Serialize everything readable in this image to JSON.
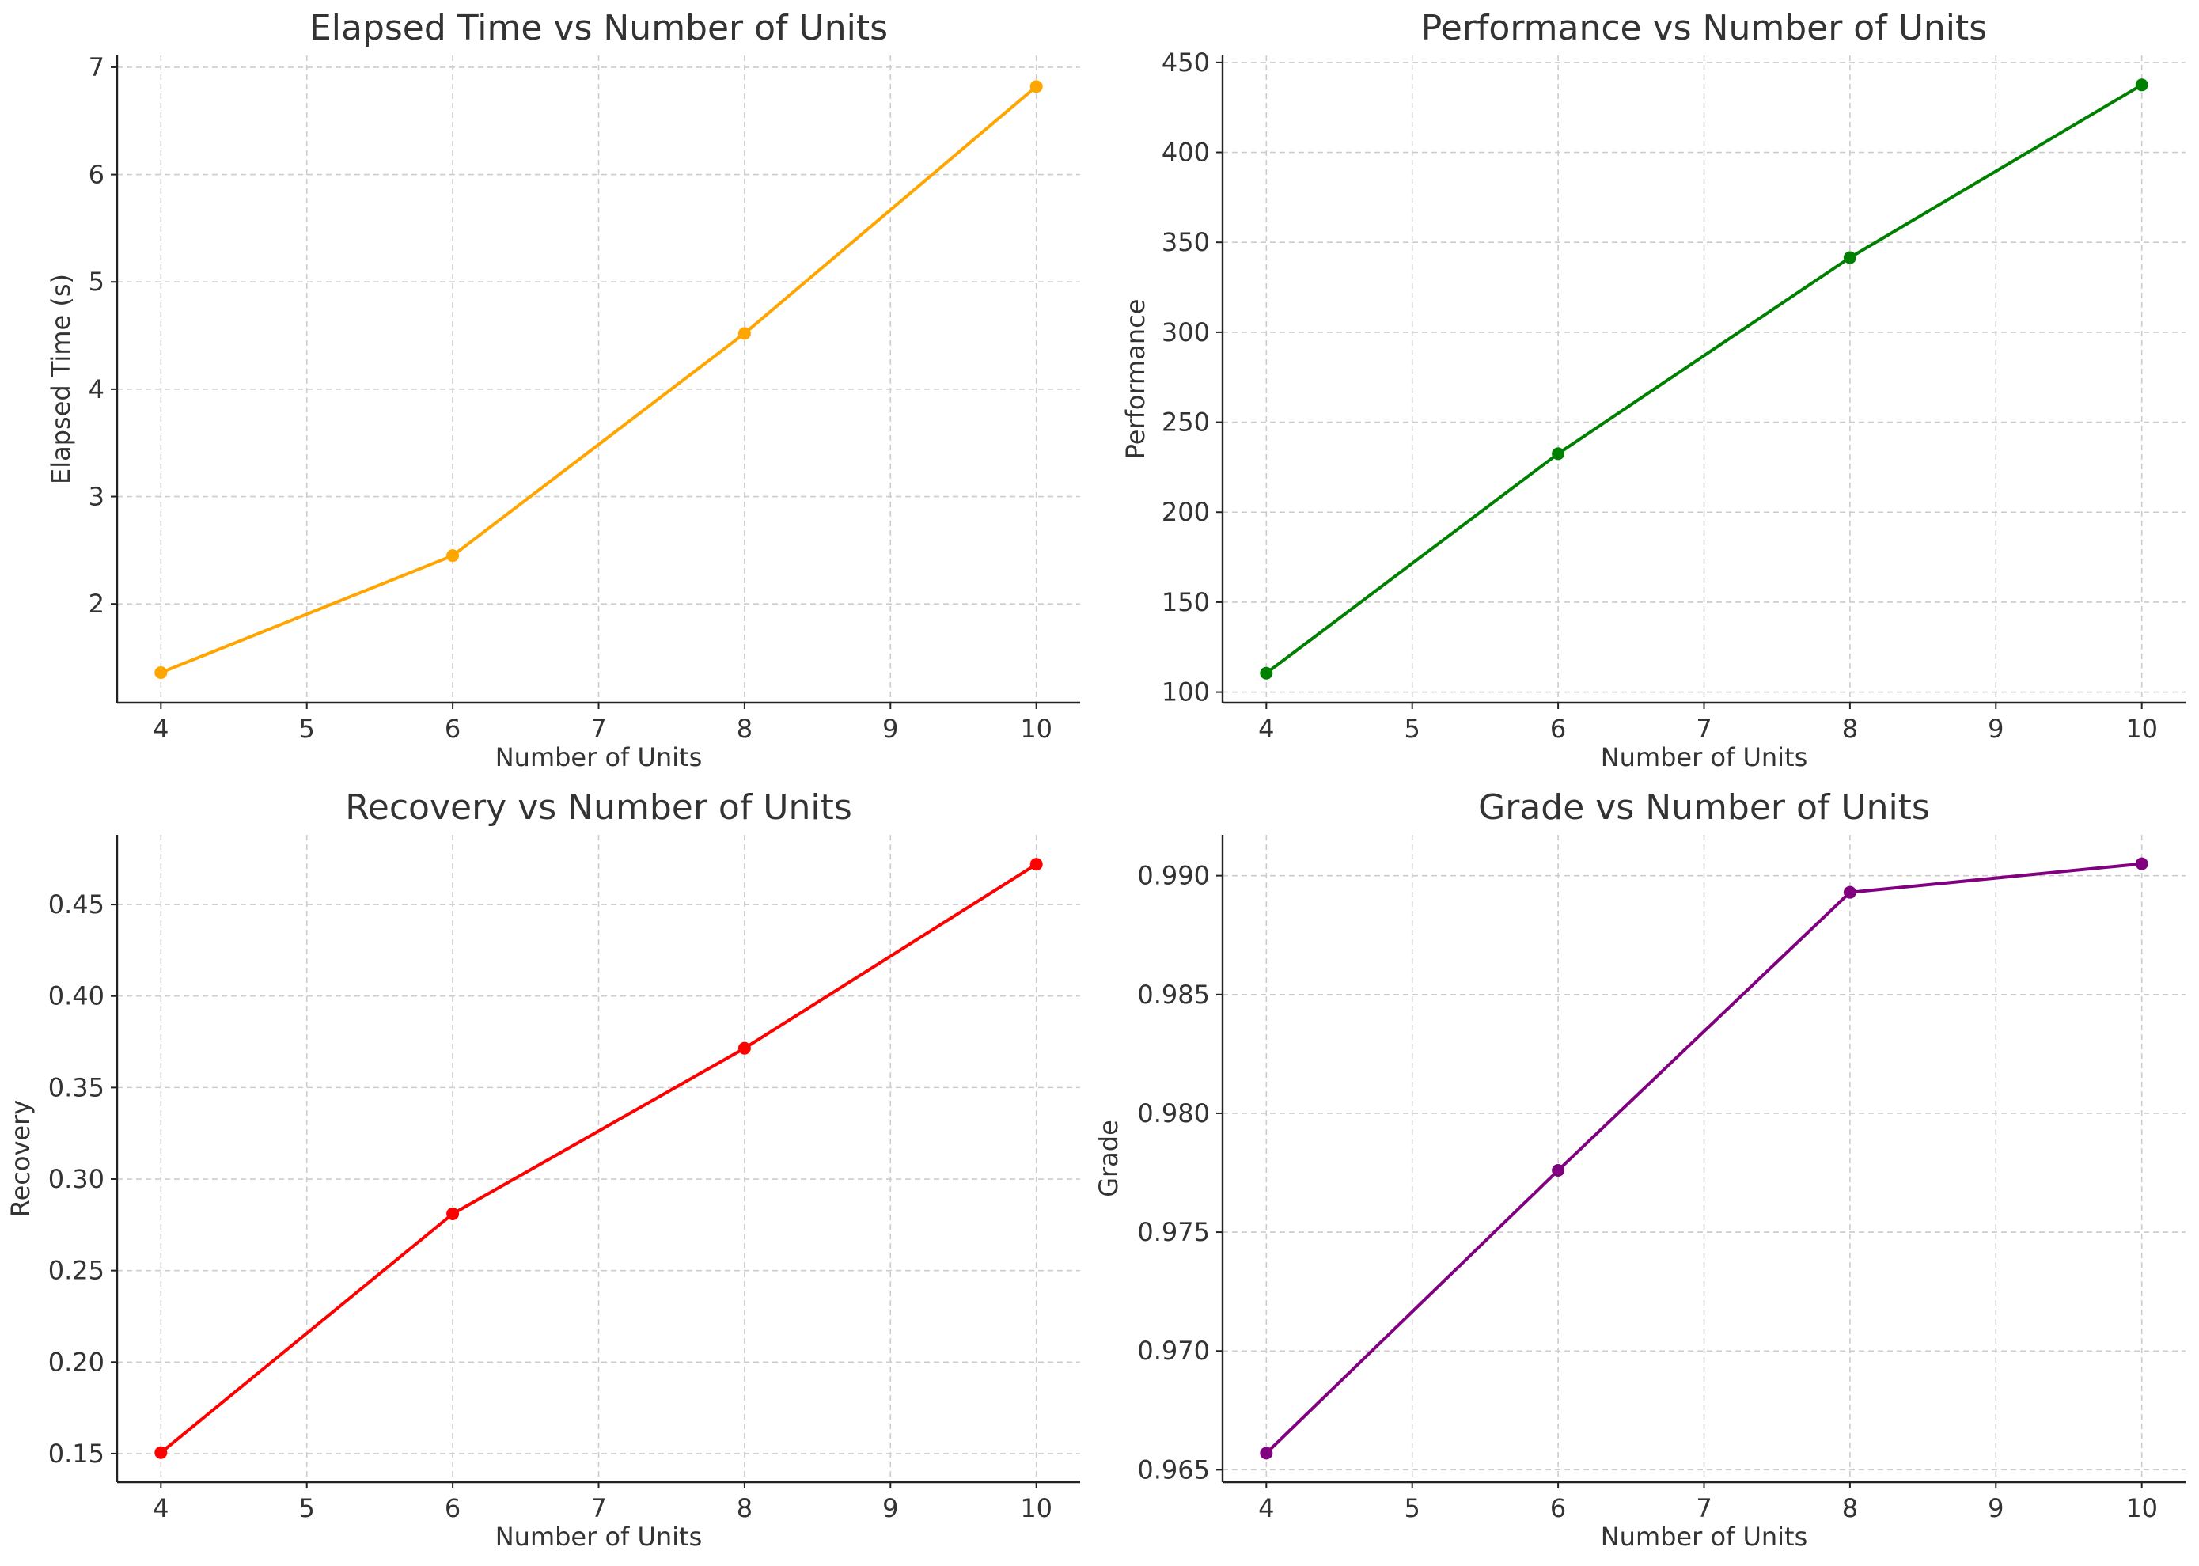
{
  "chart_data": [
    {
      "type": "line",
      "title": "Elapsed Time vs Number of Units",
      "xlabel": "Number of Units",
      "ylabel": "Elapsed Time (s)",
      "x": [
        4,
        6,
        8,
        10
      ],
      "series": [
        {
          "values": [
            1.36,
            2.45,
            4.52,
            6.82
          ],
          "color": "#FFA500"
        }
      ],
      "xlim": [
        3.7,
        10.3
      ],
      "ylim": [
        1.08,
        7.11
      ],
      "xticks": [
        4,
        5,
        6,
        7,
        8,
        9,
        10
      ],
      "yticks": [
        2,
        3,
        4,
        5,
        6,
        7
      ],
      "ytick_labels": [
        "2",
        "3",
        "4",
        "5",
        "6",
        "7"
      ],
      "grid": true
    },
    {
      "type": "line",
      "title": "Performance vs Number of Units",
      "xlabel": "Number of Units",
      "ylabel": "Performance",
      "x": [
        4,
        6,
        8,
        10
      ],
      "series": [
        {
          "values": [
            110.5,
            232.5,
            341.5,
            437.5
          ],
          "color": "#008000"
        }
      ],
      "xlim": [
        3.7,
        10.3
      ],
      "ylim": [
        94.1,
        453.9
      ],
      "xticks": [
        4,
        5,
        6,
        7,
        8,
        9,
        10
      ],
      "yticks": [
        100,
        150,
        200,
        250,
        300,
        350,
        400,
        450
      ],
      "ytick_labels": [
        "100",
        "150",
        "200",
        "250",
        "300",
        "350",
        "400",
        "450"
      ],
      "grid": true
    },
    {
      "type": "line",
      "title": "Recovery vs Number of Units",
      "xlabel": "Number of Units",
      "ylabel": "Recovery",
      "x": [
        4,
        6,
        8,
        10
      ],
      "series": [
        {
          "values": [
            0.1505,
            0.281,
            0.3715,
            0.472
          ],
          "color": "#FF0000"
        }
      ],
      "xlim": [
        3.7,
        10.3
      ],
      "ylim": [
        0.1344,
        0.4881
      ],
      "xticks": [
        4,
        5,
        6,
        7,
        8,
        9,
        10
      ],
      "yticks": [
        0.15,
        0.2,
        0.25,
        0.3,
        0.35,
        0.4,
        0.45
      ],
      "ytick_labels": [
        "0.15",
        "0.20",
        "0.25",
        "0.30",
        "0.35",
        "0.40",
        "0.45"
      ],
      "grid": true
    },
    {
      "type": "line",
      "title": "Grade vs Number of Units",
      "xlabel": "Number of Units",
      "ylabel": "Grade",
      "x": [
        4,
        6,
        8,
        10
      ],
      "series": [
        {
          "values": [
            0.9657,
            0.9776,
            0.9893,
            0.9905
          ],
          "color": "#800080"
        }
      ],
      "xlim": [
        3.7,
        10.3
      ],
      "ylim": [
        0.96448,
        0.99172
      ],
      "xticks": [
        4,
        5,
        6,
        7,
        8,
        9,
        10
      ],
      "yticks": [
        0.965,
        0.97,
        0.975,
        0.98,
        0.985,
        0.99
      ],
      "ytick_labels": [
        "0.965",
        "0.970",
        "0.975",
        "0.980",
        "0.985",
        "0.990"
      ],
      "grid": true
    }
  ]
}
